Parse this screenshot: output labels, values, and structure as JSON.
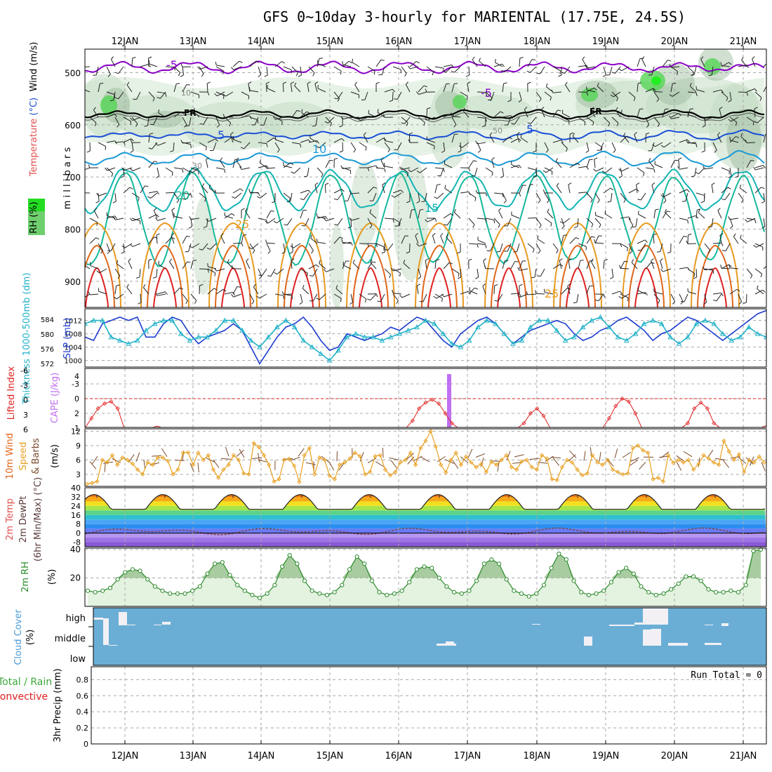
{
  "title": "GFS 0~10day 3-hourly for MARIENTAL (17.75E, 24.5S)",
  "date_labels": [
    "12JAN",
    "13JAN",
    "14JAN",
    "15JAN",
    "16JAN",
    "17JAN",
    "18JAN",
    "19JAN",
    "20JAN",
    "21JAN"
  ],
  "colors": {
    "purple": "#8a00c8",
    "black": "#000000",
    "blue": "#1a4fd6",
    "lightblue": "#1a9ad6",
    "teal": "#12b4b4",
    "seagreen": "#16b89a",
    "orange": "#e89a20",
    "darkorange": "#e0661a",
    "red": "#e02020",
    "rh_light": "#e6f2e6",
    "rh_mid": "#c4dcc4",
    "rh_dark": "#9ab89a",
    "rh_green": "#55d455",
    "slp": "#1c3cd0",
    "thickness": "#22b2c8",
    "cape": "#c070f0",
    "lifted": "#e02020",
    "wind": "#e8a020",
    "barb": "#7a4a2a",
    "dewpt": "#7a4a4a",
    "rh2m": "#2a8a2a",
    "cloud": "#6aaed6",
    "cloud_white": "#f2f0f4"
  },
  "chart_data": [
    {
      "type": "line",
      "panel": "upper-air",
      "ylabel": "m i l l i b a r s",
      "legend_labels": [
        "RH (%)",
        "Temperature (°C)",
        "Wind (m/s)"
      ],
      "yticks": [
        500,
        600,
        700,
        800,
        900
      ],
      "ylim": [
        950,
        455
      ],
      "contour_labels": [
        "-5",
        "-5",
        "FR",
        "FR",
        "5",
        "5",
        "10",
        "15",
        "20",
        "25",
        "25",
        "10",
        "30",
        "50"
      ],
      "series": [
        {
          "name": "-5",
          "color_key": "purple",
          "base": 490,
          "amp": 6,
          "noise": 6
        },
        {
          "name": "FR",
          "color_key": "black",
          "base": 580,
          "amp": 5,
          "noise": 4
        },
        {
          "name": "5",
          "color_key": "blue",
          "base": 620,
          "amp": 6,
          "noise": 4
        },
        {
          "name": "10",
          "color_key": "lightblue",
          "base": 665,
          "amp": 12,
          "noise": 5
        },
        {
          "name": "15",
          "color_key": "teal",
          "base": 725,
          "amp": 40,
          "noise": 10
        },
        {
          "name": "20",
          "color_key": "seagreen",
          "base": 780,
          "amp": 85,
          "noise": 8
        }
      ]
    },
    {
      "type": "line",
      "panel": "slp-thickness",
      "ylabel_left": "Thickness 1000-500mb (dm)",
      "ylabel_right": "SLP (mb)",
      "yticks_left": [
        572,
        576,
        580,
        584
      ],
      "yticks_right": [
        1000,
        1004,
        1008,
        1012
      ],
      "ylim_right": [
        998,
        1015.5
      ],
      "series": [
        {
          "name": "SLP",
          "values": [
            1007,
            1006,
            1011,
            1012,
            1013,
            1012,
            1013,
            1007,
            1007,
            1011,
            1013,
            1012,
            1008,
            1005,
            1007,
            1008,
            1009,
            1011,
            1009,
            1004,
            999,
            1003,
            1007,
            1010,
            1011,
            1013,
            1010,
            1006,
            1003,
            1004,
            1008,
            1007,
            1006,
            1007,
            1008,
            1010,
            1009,
            1011,
            1013,
            1012,
            1009,
            1006,
            1004,
            1008,
            1010,
            1012,
            1013,
            1011,
            1008,
            1005,
            1007,
            1009,
            1010,
            1011,
            1012,
            1011,
            1008,
            1006,
            1007,
            1009,
            1010,
            1012,
            1013,
            1011,
            1009,
            1006,
            1008,
            1009,
            1011,
            1013,
            1012,
            1010,
            1008,
            1006,
            1008,
            1010,
            1012,
            1014,
            1015
          ]
        },
        {
          "name": "Thickness",
          "values": [
            1011,
            1012,
            1012,
            1007,
            1006,
            1005,
            1006,
            1009,
            1011,
            1012,
            1012,
            1008,
            1006,
            1007,
            1007,
            1009,
            1012,
            1012,
            1009,
            1006,
            1004,
            1007,
            1010,
            1012,
            1010,
            1006,
            1004,
            1002,
            1000,
            1003,
            1007,
            1008,
            1007,
            1007,
            1006,
            1007,
            1008,
            1009,
            1010,
            1012,
            1011,
            1008,
            1005,
            1004,
            1006,
            1010,
            1012,
            1011,
            1008,
            1005,
            1006,
            1010,
            1012,
            1012,
            1009,
            1006,
            1007,
            1010,
            1012,
            1013,
            1010,
            1007,
            1006,
            1008,
            1011,
            1012,
            1011,
            1007,
            1005,
            1007,
            1011,
            1012,
            1011,
            1008,
            1006,
            1007,
            1010,
            1008,
            1007
          ]
        }
      ]
    },
    {
      "type": "line",
      "panel": "cape-lifted",
      "ylabel_left": "Lifted Index",
      "ylabel_right": "CAPE (J/kg)",
      "yticks_left": [
        "6",
        "3",
        "0",
        "-3",
        "-6"
      ],
      "yticks_right": [
        1,
        2,
        4
      ],
      "series": [
        {
          "name": "Lifted Index",
          "values": [
            6,
            4,
            2,
            1,
            0.6,
            2,
            6,
            6,
            6,
            6,
            6,
            5.6,
            6,
            6,
            6,
            6,
            6,
            6,
            6,
            6,
            6,
            6,
            6,
            6,
            6,
            6,
            6,
            6,
            6,
            6,
            6,
            6,
            6,
            6,
            6,
            6,
            6,
            6,
            6,
            6,
            6,
            6,
            6,
            6,
            6,
            6,
            6,
            6,
            6,
            6,
            4.5,
            2,
            0.8,
            0.2,
            1,
            3,
            5,
            6,
            6,
            6,
            6,
            6,
            6,
            6,
            6,
            6,
            6,
            5,
            3,
            2,
            3.5,
            6,
            6,
            6,
            6,
            6,
            6,
            6,
            6,
            6,
            4,
            1.5,
            0,
            0.6,
            3,
            6,
            6,
            6,
            6,
            6,
            6,
            6,
            5,
            2,
            0.8,
            2,
            5,
            6,
            6,
            6,
            6,
            6,
            6,
            6,
            5.5
          ]
        },
        {
          "name": "CAPE",
          "values": [
            4
          ]
        }
      ]
    },
    {
      "type": "line",
      "panel": "wind10m",
      "ylabel": "10m Wind Speed & Barbs (m/s)",
      "yticks": [
        3,
        6,
        9,
        12
      ],
      "ylim": [
        0.5,
        12.5
      ],
      "series": [
        {
          "name": "10m Wind Speed",
          "values": [
            1,
            1.2,
            1.5,
            6,
            5.5,
            7,
            5,
            6.5,
            6,
            5.2,
            4,
            3,
            5.5,
            5,
            6.5,
            6.5,
            5.8,
            3,
            4,
            7.5,
            7.6,
            5,
            7.5,
            6,
            7,
            4,
            2.3,
            4,
            5,
            7,
            6,
            3.2,
            3,
            9.5,
            8.7,
            7,
            5,
            1.5,
            2,
            6,
            6.2,
            4.8,
            1.4,
            7,
            8.5,
            3,
            6.5,
            6,
            2.7,
            2,
            5,
            5.5,
            6.3,
            7.5,
            6.8,
            3,
            3.5,
            6.8,
            7,
            4,
            2.8,
            3.5,
            5.5,
            6,
            7.5,
            5,
            8.5,
            10,
            12,
            8.8,
            5,
            3.4,
            6,
            7.5,
            5,
            6.7,
            5.5,
            4.5,
            5.2,
            3.5,
            5.6,
            5,
            6,
            7,
            4.5,
            4,
            5.7,
            6,
            4.5,
            4,
            7,
            6.3,
            2,
            1.8,
            4.5,
            6,
            5.5,
            4,
            2.8,
            3.2,
            7,
            5.5,
            5,
            6,
            4,
            3.5,
            3,
            3.2,
            8.5,
            9,
            8,
            7.5,
            2,
            2.3,
            1.5,
            7,
            5.4,
            6,
            5.5,
            6,
            4,
            5.2,
            7,
            6.3,
            5.5,
            5,
            10,
            7.8,
            6,
            7.2,
            3.5,
            6,
            5.5,
            6.7,
            5.5
          ]
        }
      ]
    },
    {
      "type": "area",
      "panel": "temp2m",
      "ylabel": "2m Temp 2m DewPt (6hr Min/Max) (°C)",
      "yticks": [
        -8,
        0,
        8,
        16,
        24,
        32,
        40
      ],
      "ylim": [
        -12,
        40
      ],
      "series": [
        {
          "name": "2m Temp",
          "min": 21,
          "max": 34
        },
        {
          "name": "2m DewPt",
          "base": 1.5,
          "amp": 3
        }
      ]
    },
    {
      "type": "area",
      "panel": "rh2m",
      "ylabel": "2m RH (%)",
      "yticks": [
        20,
        40
      ],
      "ylim": [
        0,
        41
      ],
      "series": [
        {
          "name": "2m RH",
          "values": [
            11,
            10,
            11,
            13,
            19,
            24,
            26,
            25,
            19,
            14,
            11,
            9,
            9,
            9,
            11,
            14,
            23,
            30,
            31,
            22,
            15,
            11,
            8,
            6,
            9,
            15,
            28,
            36,
            30,
            18,
            11,
            9,
            8,
            10,
            15,
            26,
            35,
            30,
            18,
            10,
            8,
            9,
            11,
            17,
            26,
            28,
            27,
            20,
            14,
            10,
            9,
            11,
            18,
            30,
            33,
            30,
            19,
            11,
            9,
            7,
            9,
            15,
            27,
            37,
            33,
            18,
            10,
            8,
            9,
            11,
            17,
            24,
            27,
            23,
            14,
            10,
            8,
            9,
            12,
            16,
            21,
            21,
            18,
            12,
            10,
            10,
            11,
            10,
            15,
            39,
            40
          ]
        }
      ]
    },
    {
      "type": "bar",
      "panel": "cloud-cover",
      "ylabel": "Cloud Cover (%)",
      "categories": [
        "high",
        "middle",
        "low"
      ]
    },
    {
      "type": "bar",
      "panel": "precip",
      "ylabel_right": "3hr Precip (mm)",
      "legend_labels": [
        "Total / Rain",
        "Convective"
      ],
      "yticks": [
        0,
        0.2,
        0.4,
        0.6,
        0.8
      ],
      "ylim": [
        0,
        0.96
      ],
      "run_total": "Run Total = 0"
    }
  ]
}
